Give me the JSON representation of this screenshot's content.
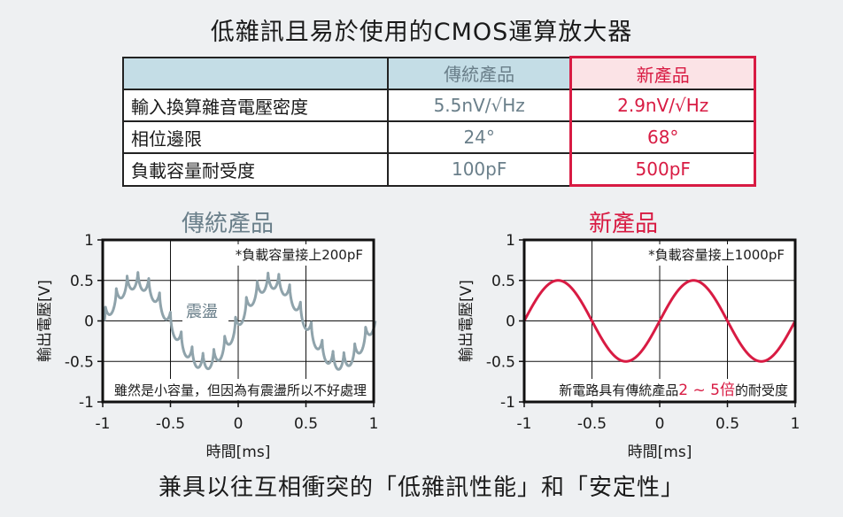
{
  "title": "低雜訊且易於使用的CMOS運算放大器",
  "table": {
    "header": [
      "",
      "傳統產品",
      "新產品"
    ],
    "rows": [
      [
        "輸入換算雜音電壓密度",
        "5.5nV/√Hz",
        "2.9nV/√Hz"
      ],
      [
        "相位邊限",
        "24°",
        "68°"
      ],
      [
        "負載容量耐受度",
        "100pF",
        "500pF"
      ]
    ]
  },
  "colors": {
    "gray": "#8fa3ab",
    "red": "#d81b43",
    "label_gray": "#6a7f8a"
  },
  "chart_data": [
    {
      "type": "line",
      "title": "傳統產品",
      "xlabel": "時間[ms]",
      "ylabel": "輸出電壓[V]",
      "xlim": [
        -1,
        1
      ],
      "ylim": [
        -1,
        1
      ],
      "xticks": [
        "-1",
        "-0.5",
        "0",
        "0.5",
        "1"
      ],
      "yticks": [
        "1",
        "0.5",
        "0",
        "-0.5",
        "-1"
      ],
      "grid": true,
      "series": [
        {
          "name": "輸出",
          "function": "0.5*sin(2*pi*x), x in ms",
          "oscillation_amplitude": 0.1,
          "oscillating": true
        }
      ],
      "annotations": {
        "load": "*負載容量接上200pF",
        "ringing": "震盪",
        "note": "雖然是小容量，但因為有震盪所以不好處理"
      }
    },
    {
      "type": "line",
      "title": "新產品",
      "xlabel": "時間[ms]",
      "ylabel": "輸出電壓[V]",
      "xlim": [
        -1,
        1
      ],
      "ylim": [
        -1,
        1
      ],
      "xticks": [
        "-1",
        "-0.5",
        "0",
        "0.5",
        "1"
      ],
      "yticks": [
        "1",
        "0.5",
        "0",
        "-0.5",
        "-1"
      ],
      "grid": true,
      "series": [
        {
          "name": "輸出",
          "function": "0.5*sin(2*pi*x), x in ms",
          "oscillating": false
        }
      ],
      "annotations": {
        "load": "*負載容量接上1000pF",
        "note_prefix": "新電路具有傳統產品",
        "note_highlight": "2 ~ 5倍",
        "note_suffix": "的耐受度"
      }
    }
  ],
  "bottom_text": "兼具以往互相衝突的「低雜訊性能」和「安定性」"
}
